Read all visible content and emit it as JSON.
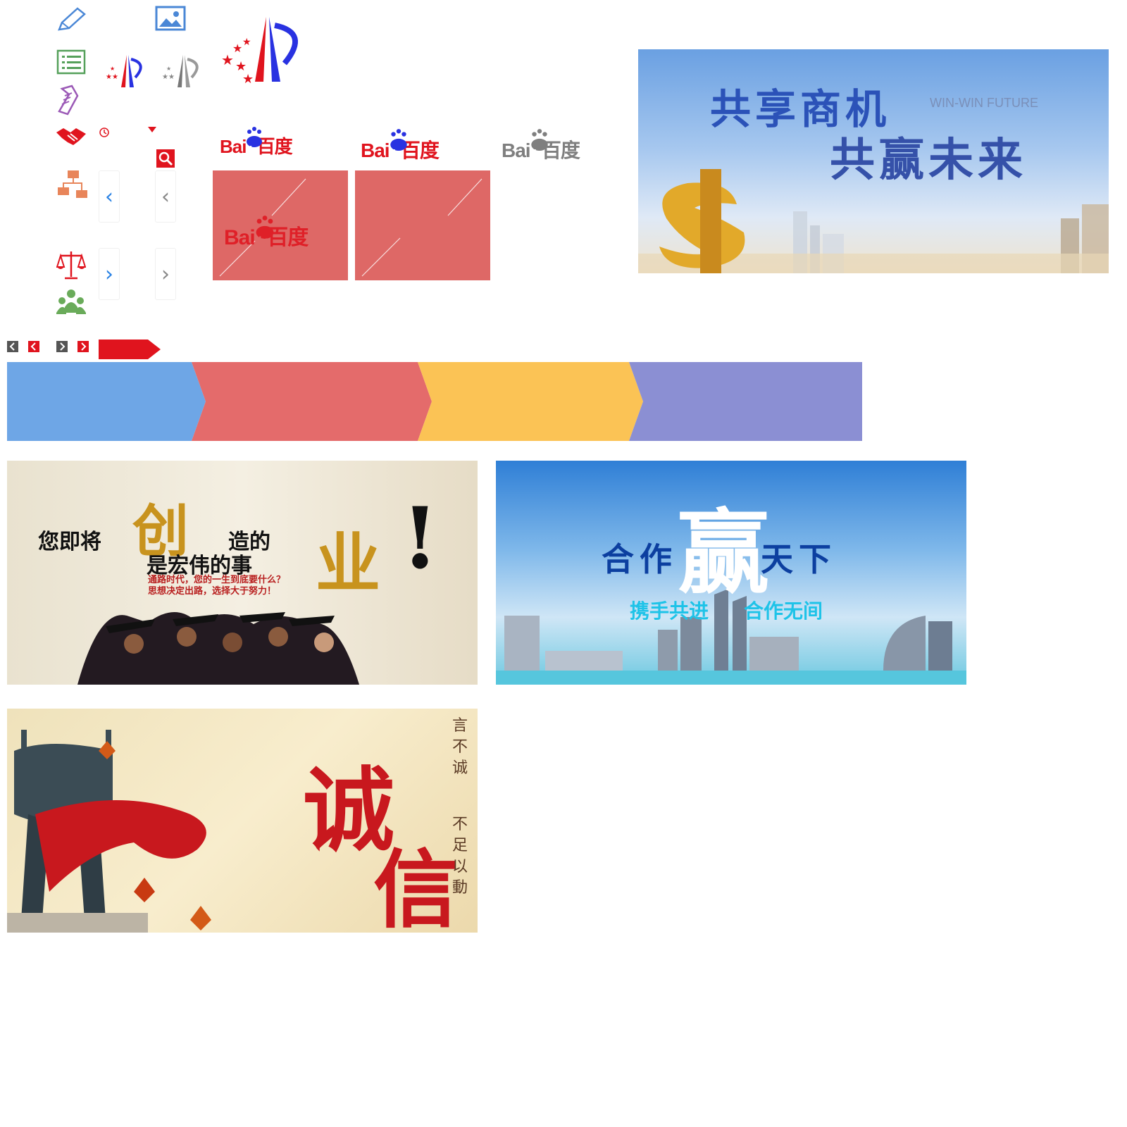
{
  "colors": {
    "red": "#e0141e",
    "pink_tile": "#de6866",
    "step_blue": "#6ea6e6",
    "step_red": "#e46b6b",
    "step_yellow": "#fbc355",
    "step_purple": "#8b8fd3",
    "baidu_red": "#e0141e",
    "baidu_blue": "#2932e1",
    "baidu_gray": "#7f7f7f"
  },
  "icons": [
    "pencil-icon",
    "image-icon",
    "list-icon",
    "scroll-icon",
    "handshake-icon",
    "clock-icon",
    "caret-down-icon",
    "search-icon",
    "network-icon",
    "scale-icon",
    "people-icon",
    "chevron-left-icon",
    "chevron-right-icon"
  ],
  "baidu_logos": [
    {
      "bai": "Bai",
      "du": "du",
      "cn": "百度",
      "variant": "color"
    },
    {
      "bai": "Bai",
      "du": "du",
      "cn": "百度",
      "variant": "color-large"
    },
    {
      "bai": "Bai",
      "du": "du",
      "cn": "百度",
      "variant": "gray"
    },
    {
      "bai": "Bai",
      "du": "du",
      "cn": "百度",
      "variant": "on-pink"
    }
  ],
  "banner_win_win": {
    "line1": "共享商机",
    "line2": "共赢未来",
    "en": "WIN-WIN FUTURE"
  },
  "banner_career": {
    "part1": "您即将",
    "big1": "创",
    "part2": "造的",
    "part3": "是宏伟的事",
    "big2": "业",
    "exclaim": "!",
    "sub1": "通路时代，您的一生到底要什么？",
    "sub2": "思想决定出路，选择大于努力！"
  },
  "banner_cooperate": {
    "left": "合作",
    "big": "赢",
    "right": "天下",
    "slogan1": "携手共进",
    "slogan2": "合作无间"
  },
  "banner_integrity": {
    "big1": "诚",
    "big2": "信",
    "side1": "言不诚",
    "side2": "不足以動"
  }
}
